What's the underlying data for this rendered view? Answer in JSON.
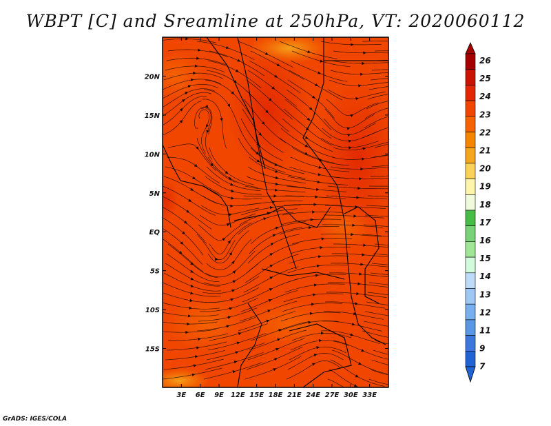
{
  "title": "WBPT [C] and Sreamline at 250hPa, VT: 2020060112",
  "credit": "GrADS: IGES/COLA",
  "map": {
    "lon_range": [
      0,
      36
    ],
    "lat_range": [
      -20,
      25
    ],
    "lat_ticks": [
      {
        "value": 20,
        "label": "20N"
      },
      {
        "value": 15,
        "label": "15N"
      },
      {
        "value": 10,
        "label": "10N"
      },
      {
        "value": 5,
        "label": "5N"
      },
      {
        "value": 0,
        "label": "EQ"
      },
      {
        "value": -5,
        "label": "5S"
      },
      {
        "value": -10,
        "label": "10S"
      },
      {
        "value": -15,
        "label": "15S"
      }
    ],
    "lon_ticks": [
      {
        "value": 3,
        "label": "3E"
      },
      {
        "value": 6,
        "label": "6E"
      },
      {
        "value": 9,
        "label": "9E"
      },
      {
        "value": 12,
        "label": "12E"
      },
      {
        "value": 15,
        "label": "15E"
      },
      {
        "value": 18,
        "label": "18E"
      },
      {
        "value": 21,
        "label": "21E"
      },
      {
        "value": 24,
        "label": "24E"
      },
      {
        "value": 27,
        "label": "27E"
      },
      {
        "value": 30,
        "label": "30E"
      },
      {
        "value": 33,
        "label": "33E"
      }
    ]
  },
  "colorbar": {
    "labels": [
      "26",
      "25",
      "24",
      "23",
      "22",
      "21",
      "20",
      "19",
      "18",
      "17",
      "16",
      "15",
      "14",
      "13",
      "12",
      "11",
      "9",
      "7"
    ],
    "colors": [
      "#a50000",
      "#c81400",
      "#e12800",
      "#f04600",
      "#f56400",
      "#f58700",
      "#f5a51e",
      "#fad25a",
      "#fff5aa",
      "#f0fadc",
      "#46be46",
      "#78d278",
      "#a0e696",
      "#d2fadc",
      "#bedcfa",
      "#a0c8f5",
      "#78aff0",
      "#5a96e6",
      "#3c78dc",
      "#1e64d2"
    ]
  }
}
